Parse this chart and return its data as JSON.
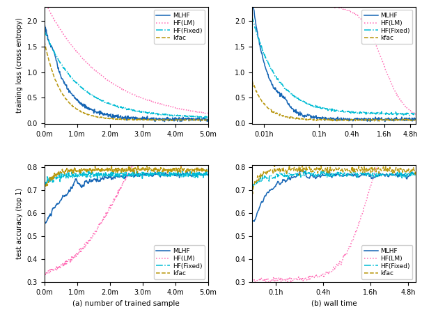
{
  "colors": {
    "MLHF": "#1464b4",
    "HF_LM": "#ff69b4",
    "HF_Fixed": "#00bcd4",
    "kfac": "#b8960c"
  },
  "subplot_labels": [
    "(a) number of trained sample",
    "(b) wall time"
  ],
  "top_ylabel": "training loss (cross entropy)",
  "bottom_ylabel": "test accuracy (top 1)",
  "legend_top": [
    "MLHF",
    "HF(LM)",
    "HF(Fixed)",
    "kfac"
  ],
  "legend_bottom": [
    "MLHF",
    "HF(LM)",
    "HF(Fixed)",
    "kfac"
  ]
}
